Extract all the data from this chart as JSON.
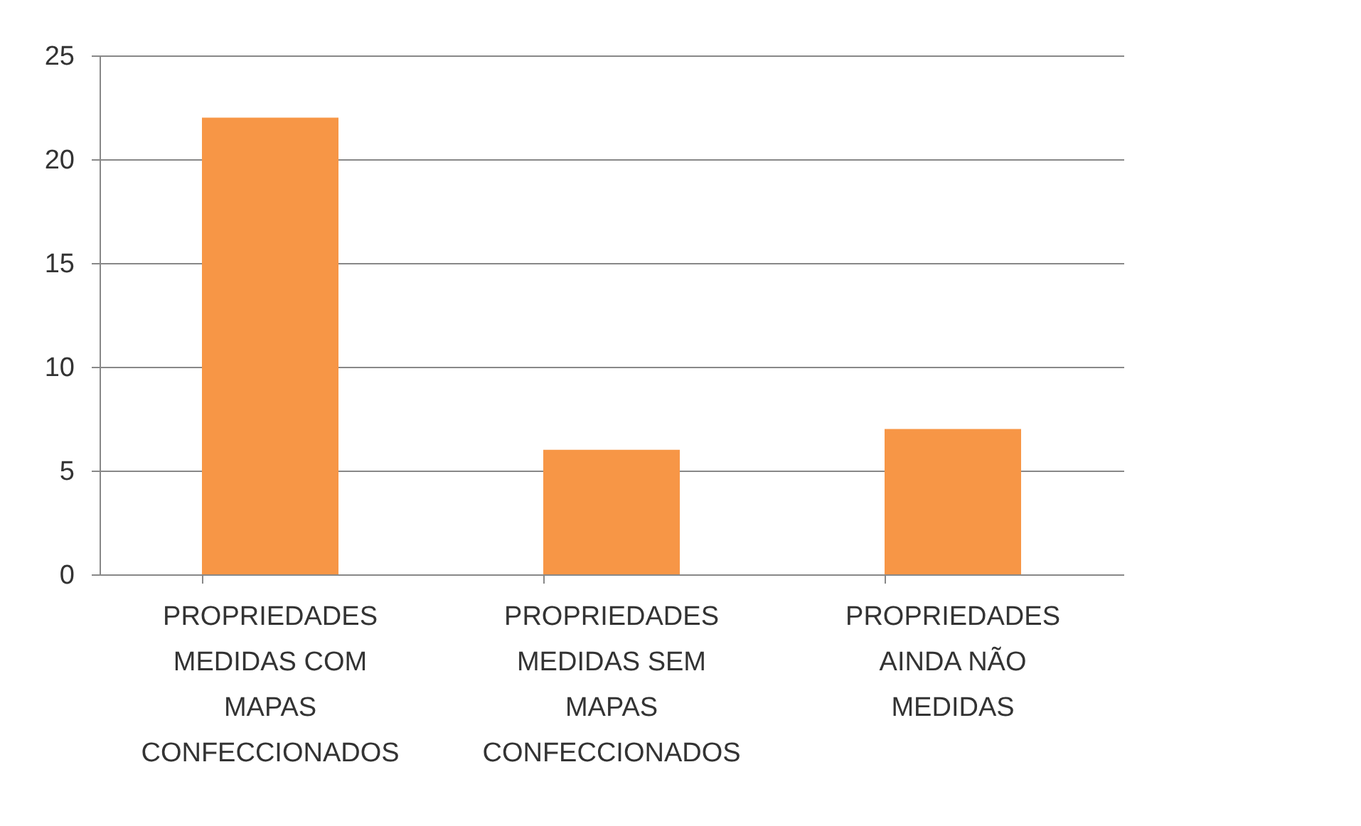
{
  "chart_data": {
    "type": "bar",
    "categories": [
      "PROPRIEDADES MEDIDAS COM MAPAS CONFECCIONADOS",
      "PROPRIEDADES MEDIDAS SEM MAPAS CONFECCIONADOS",
      "PROPRIEDADES AINDA NÃO MEDIDAS"
    ],
    "values": [
      22,
      6,
      7
    ],
    "color": "#f79646",
    "ylim": [
      0,
      25
    ],
    "yticks": [
      0,
      5,
      10,
      15,
      20,
      25
    ],
    "grid": "y"
  }
}
